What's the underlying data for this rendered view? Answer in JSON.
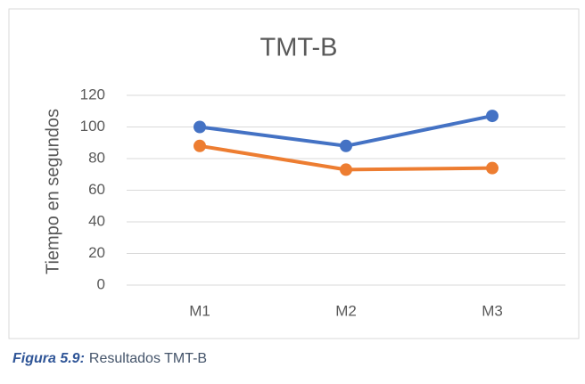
{
  "chart_data": {
    "type": "line",
    "title": "TMT-B",
    "y_label": "Tiempo en segundos",
    "categories": [
      "M1",
      "M2",
      "M3"
    ],
    "series": [
      {
        "color": "#4472c4",
        "values": [
          100,
          88,
          107
        ]
      },
      {
        "color": "#ed7d31",
        "values": [
          88,
          73,
          74
        ]
      }
    ],
    "ylim": [
      0,
      120
    ],
    "yticks": [
      0,
      20,
      40,
      60,
      80,
      100,
      120
    ],
    "grid": true
  },
  "caption": {
    "label": "Figura 5.9:",
    "text": "Resultados TMT-B"
  }
}
